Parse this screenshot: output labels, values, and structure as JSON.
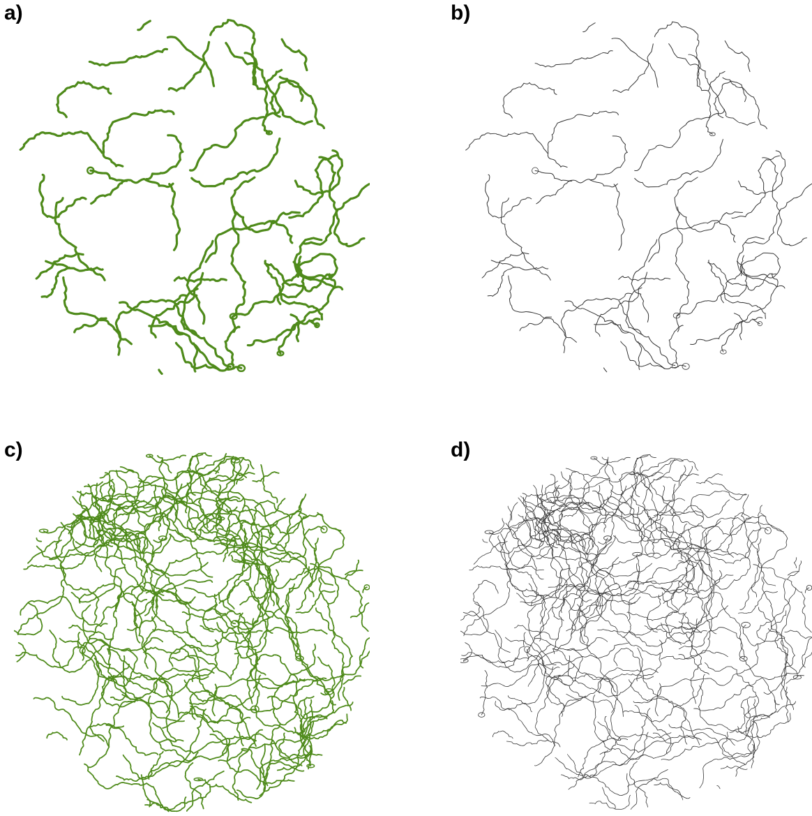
{
  "panels": [
    {
      "id": "a",
      "label": "a)",
      "style": "green-tube",
      "density": "sparse",
      "color": "#4e8a1a"
    },
    {
      "id": "b",
      "label": "b)",
      "style": "thin-line",
      "density": "sparse",
      "color": "#333333"
    },
    {
      "id": "c",
      "label": "c)",
      "style": "green-tube",
      "density": "dense",
      "color": "#4e8a1a"
    },
    {
      "id": "d",
      "label": "d)",
      "style": "thin-line",
      "density": "dense",
      "color": "#333333"
    }
  ]
}
